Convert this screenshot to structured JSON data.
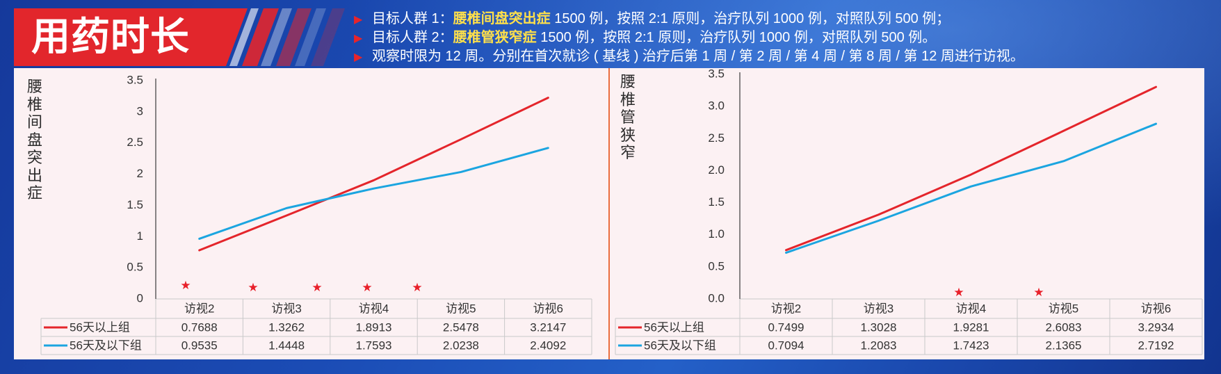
{
  "header": {
    "title": "用药时长",
    "bullet_marker": "▶",
    "bullets": [
      {
        "lead": "目标人群 1：",
        "highlight": "腰椎间盘突出症",
        "rest": " 1500 例，按照 2:1 原则，治疗队列 1000 例，对照队列 500 例；"
      },
      {
        "lead": "目标人群 2：",
        "highlight": "腰椎管狭窄症",
        "rest": " 1500 例，按照 2:1 原则，治疗队列 1000 例，对照队列 500 例。"
      },
      {
        "lead": "观察时限为 12 周。分别在首次就诊 ( 基线 ) 治疗后第 1 周 / 第 2 周 / 第 4 周 / 第 8 周 / 第 12 周进行访视。"
      }
    ]
  },
  "colors": {
    "title_red": "#e2262c",
    "marker_red": "#e8242b",
    "highlight_yellow": "#ffe04a",
    "panel": "#fcf1f3",
    "divider": "#ea6d3e",
    "star": "#e8202a"
  },
  "chart_data": [
    {
      "type": "line",
      "ylabel": "腰椎间盘突出症",
      "categories": [
        "访视2",
        "访视3",
        "访视4",
        "访视5",
        "访视6"
      ],
      "ylim": [
        0,
        3.5
      ],
      "yticks": [
        "0",
        "0.5",
        "1",
        "1.5",
        "2",
        "2.5",
        "3",
        "3.5"
      ],
      "series": [
        {
          "name": "56天以上组",
          "color": "#e4252b",
          "values": [
            0.7688,
            1.3262,
            1.8913,
            2.5478,
            3.2147
          ]
        },
        {
          "name": "56天及以下组",
          "color": "#1ba5e0",
          "values": [
            0.9535,
            1.4448,
            1.7593,
            2.0238,
            2.4092
          ]
        }
      ],
      "marker": "★"
    },
    {
      "type": "line",
      "ylabel": "腰椎管狭窄",
      "categories": [
        "访视2",
        "访视3",
        "访视4",
        "访视5",
        "访视6"
      ],
      "ylim": [
        0,
        3.5
      ],
      "yticks": [
        "0.0",
        "0.5",
        "1.0",
        "1.5",
        "2.0",
        "2.5",
        "3.0",
        "3.5"
      ],
      "series": [
        {
          "name": "56天以上组",
          "color": "#e4252b",
          "values": [
            0.7499,
            1.3028,
            1.9281,
            2.6083,
            3.2934
          ]
        },
        {
          "name": "56天及以下组",
          "color": "#1ba5e0",
          "values": [
            0.7094,
            1.2083,
            1.7423,
            2.1365,
            2.7192
          ]
        }
      ],
      "marker": "★"
    }
  ]
}
